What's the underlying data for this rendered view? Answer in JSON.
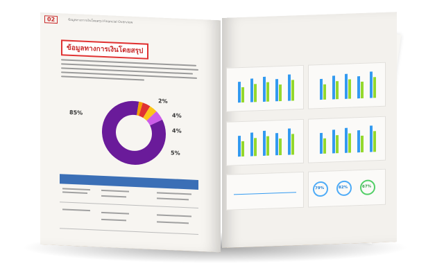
{
  "left_page": {
    "header_number": "02",
    "header_text": "ข้อมูลทางการเงินโดยสรุป Financial Overview",
    "section_title": "ข้อมูลทางการเงินโดยสรุป",
    "donut_labels": [
      "85%",
      "2%",
      "4%",
      "4%",
      "5%"
    ],
    "donut_values": [
      85,
      2,
      4,
      4,
      5
    ],
    "donut_colors": [
      "#6a1b9a",
      "#f59f00",
      "#e03131",
      "#fcc419",
      "#cc5de8"
    ]
  },
  "right_page": {
    "gauges": [
      "79%",
      "82%",
      "67%"
    ],
    "gauge_values": [
      79,
      82,
      67
    ],
    "gauge_colors": [
      "#339af0",
      "#339af0",
      "#51cf66"
    ],
    "bar_colors": [
      "#339af0",
      "#94d82d"
    ]
  }
}
